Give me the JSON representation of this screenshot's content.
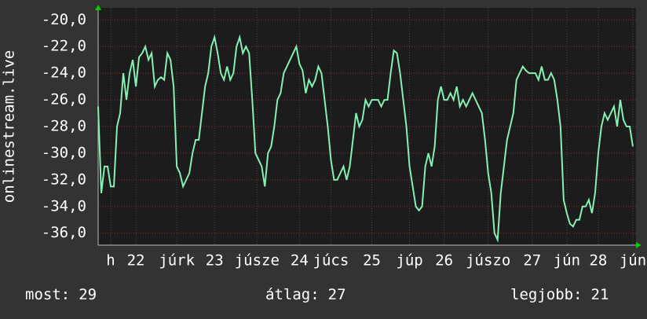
{
  "chart_data": {
    "type": "line",
    "y_label": "onlinestream.live",
    "xlim": [
      0,
      171
    ],
    "ylim": [
      -36.9,
      -19.1
    ],
    "yticks": [
      {
        "value": -20,
        "label": "-20,0"
      },
      {
        "value": -22,
        "label": "-22,0"
      },
      {
        "value": -24,
        "label": "-24,0"
      },
      {
        "value": -26,
        "label": "-26,0"
      },
      {
        "value": -28,
        "label": "-28,0"
      },
      {
        "value": -30,
        "label": "-30,0"
      },
      {
        "value": -32,
        "label": "-32,0"
      },
      {
        "value": -34,
        "label": "-34,0"
      },
      {
        "value": -36,
        "label": "-36,0"
      }
    ],
    "xticks": [
      {
        "value": 4,
        "label": "h"
      },
      {
        "value": 12,
        "label": "22"
      },
      {
        "value": 25,
        "label": "júrk"
      },
      {
        "value": 37,
        "label": "23"
      },
      {
        "value": 50.5,
        "label": "júsze"
      },
      {
        "value": 64,
        "label": "24"
      },
      {
        "value": 74,
        "label": "júcs"
      },
      {
        "value": 87,
        "label": "25"
      },
      {
        "value": 99,
        "label": "júp"
      },
      {
        "value": 110,
        "label": "26"
      },
      {
        "value": 124,
        "label": "júszo"
      },
      {
        "value": 138,
        "label": "27"
      },
      {
        "value": 149,
        "label": "jún"
      },
      {
        "value": 159,
        "label": "28"
      },
      {
        "value": 170,
        "label": "jún"
      }
    ],
    "grid": true,
    "x": [
      0,
      1,
      2,
      3,
      4,
      5,
      6,
      7,
      8,
      9,
      10,
      11,
      12,
      13,
      14,
      15,
      16,
      17,
      18,
      19,
      20,
      21,
      22,
      23,
      24,
      25,
      26,
      27,
      28,
      29,
      30,
      31,
      32,
      33,
      34,
      35,
      36,
      37,
      38,
      39,
      40,
      41,
      42,
      43,
      44,
      45,
      46,
      47,
      48,
      49,
      50,
      51,
      52,
      53,
      54,
      55,
      56,
      57,
      58,
      59,
      60,
      61,
      62,
      63,
      64,
      65,
      66,
      67,
      68,
      69,
      70,
      71,
      72,
      73,
      74,
      75,
      76,
      77,
      78,
      79,
      80,
      81,
      82,
      83,
      84,
      85,
      86,
      87,
      88,
      89,
      90,
      91,
      92,
      93,
      94,
      95,
      96,
      97,
      98,
      99,
      100,
      101,
      102,
      103,
      104,
      105,
      106,
      107,
      108,
      109,
      110,
      111,
      112,
      113,
      114,
      115,
      116,
      117,
      118,
      119,
      120,
      121,
      122,
      123,
      124,
      125,
      126,
      127,
      128,
      129,
      130,
      131,
      132,
      133,
      134,
      135,
      136,
      137,
      138,
      139,
      140,
      141,
      142,
      143,
      144,
      145,
      146,
      147,
      148,
      149,
      150,
      151,
      152,
      153,
      154,
      155,
      156,
      157,
      158,
      159,
      160,
      161,
      162,
      163,
      164,
      165,
      166,
      167,
      168,
      169,
      170
    ],
    "series": [
      {
        "color": "#86f0b4",
        "values": [
          -26.5,
          -33,
          -31,
          -31,
          -32.5,
          -32.5,
          -28,
          -27,
          -24,
          -26,
          -24,
          -23,
          -25,
          -22.8,
          -22.5,
          -22,
          -23,
          -22.5,
          -25,
          -24.5,
          -24.3,
          -24.5,
          -22.5,
          -23,
          -25,
          -31,
          -31.5,
          -32.5,
          -32,
          -31.5,
          -30,
          -29,
          -29,
          -27,
          -25,
          -24,
          -22,
          -21.3,
          -22.5,
          -24,
          -24.5,
          -23.5,
          -24.5,
          -24,
          -22,
          -21.3,
          -22.5,
          -22,
          -22.5,
          -26,
          -30,
          -30.5,
          -31,
          -32.5,
          -30,
          -29.5,
          -28,
          -26,
          -25.5,
          -24,
          -23.5,
          -23,
          -22.5,
          -22,
          -23.3,
          -23.8,
          -25.5,
          -24.5,
          -25,
          -24.5,
          -23.5,
          -24,
          -26,
          -28,
          -30.5,
          -32,
          -32,
          -31.5,
          -31,
          -32,
          -31,
          -29,
          -27,
          -28,
          -27.5,
          -26,
          -26.5,
          -26,
          -26,
          -26,
          -26.5,
          -26,
          -26,
          -24,
          -22.3,
          -22.5,
          -24,
          -26,
          -28,
          -31,
          -32.5,
          -34,
          -34.3,
          -34,
          -31,
          -30,
          -31,
          -29.5,
          -26,
          -25,
          -26,
          -26,
          -25.5,
          -26,
          -25,
          -26.5,
          -26,
          -26.5,
          -26,
          -25.5,
          -26,
          -26.5,
          -27,
          -29,
          -31.5,
          -33,
          -36,
          -36.5,
          -33,
          -31,
          -29,
          -28,
          -27,
          -24.5,
          -24,
          -23.5,
          -23.8,
          -24,
          -24,
          -24,
          -24.5,
          -23.5,
          -24.5,
          -24.5,
          -24,
          -24.5,
          -26,
          -28,
          -33.5,
          -34.5,
          -35.3,
          -35.5,
          -35,
          -35,
          -34,
          -34,
          -33.5,
          -34.5,
          -33,
          -30,
          -28,
          -27,
          -27.5,
          -27,
          -26.5,
          -28,
          -26,
          -27.5,
          -28,
          -28,
          -29.5
        ]
      }
    ],
    "stats": [
      {
        "label": "most:",
        "value": 29
      },
      {
        "label": "átlag:",
        "value": 27
      },
      {
        "label": "legjobb:",
        "value": 21
      }
    ]
  }
}
